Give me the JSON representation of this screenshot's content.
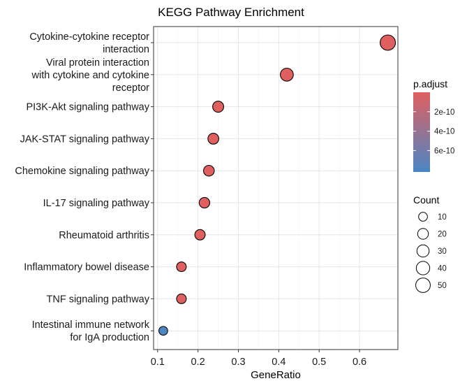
{
  "chart_data": {
    "type": "scatter",
    "title": "KEGG Pathway Enrichment",
    "xlabel": "GeneRatio",
    "ylabel": "",
    "xlim": [
      0.09,
      0.695
    ],
    "xticks": [
      0.1,
      0.2,
      0.3,
      0.4,
      0.5,
      0.6
    ],
    "xtick_labels": [
      "0.1",
      "0.2",
      "0.3",
      "0.4",
      "0.5",
      "0.6"
    ],
    "grid": true,
    "legend_position": "right",
    "categories": [
      [
        "Cytokine-cytokine receptor",
        "interaction"
      ],
      [
        "Viral protein interaction",
        "with cytokine and cytokine",
        "receptor"
      ],
      [
        "PI3K-Akt signaling pathway"
      ],
      [
        "JAK-STAT signaling pathway"
      ],
      [
        "Chemokine signaling pathway"
      ],
      [
        "IL-17 signaling pathway"
      ],
      [
        "Rheumatoid arthritis"
      ],
      [
        "Inflammatory bowel disease"
      ],
      [
        "TNF signaling pathway"
      ],
      [
        "Intestinal immune network",
        "for IgA production"
      ]
    ],
    "points": [
      {
        "x": 0.67,
        "count": 58,
        "p_adjust": 1e-20
      },
      {
        "x": 0.42,
        "count": 36,
        "p_adjust": 1e-15
      },
      {
        "x": 0.25,
        "count": 22,
        "p_adjust": 1e-14
      },
      {
        "x": 0.238,
        "count": 21,
        "p_adjust": 1e-13
      },
      {
        "x": 0.227,
        "count": 20,
        "p_adjust": 1e-13
      },
      {
        "x": 0.216,
        "count": 19,
        "p_adjust": 1e-12
      },
      {
        "x": 0.205,
        "count": 18,
        "p_adjust": 1e-12
      },
      {
        "x": 0.159,
        "count": 14,
        "p_adjust": 1e-11
      },
      {
        "x": 0.159,
        "count": 14,
        "p_adjust": 1e-11
      },
      {
        "x": 0.114,
        "count": 10,
        "p_adjust": 8e-10
      }
    ],
    "color_legend": {
      "title": "p.adjust",
      "low_color": "#e06060",
      "high_color": "#4a86c5",
      "range": [
        0,
        8.2e-10
      ],
      "ticks": [
        2e-10,
        4e-10,
        6e-10
      ],
      "tick_labels": [
        "2e-10",
        "4e-10",
        "6e-10"
      ]
    },
    "size_legend": {
      "title": "Count",
      "values": [
        10,
        20,
        30,
        40,
        50
      ],
      "labels": [
        "10",
        "20",
        "30",
        "40",
        "50"
      ]
    }
  }
}
